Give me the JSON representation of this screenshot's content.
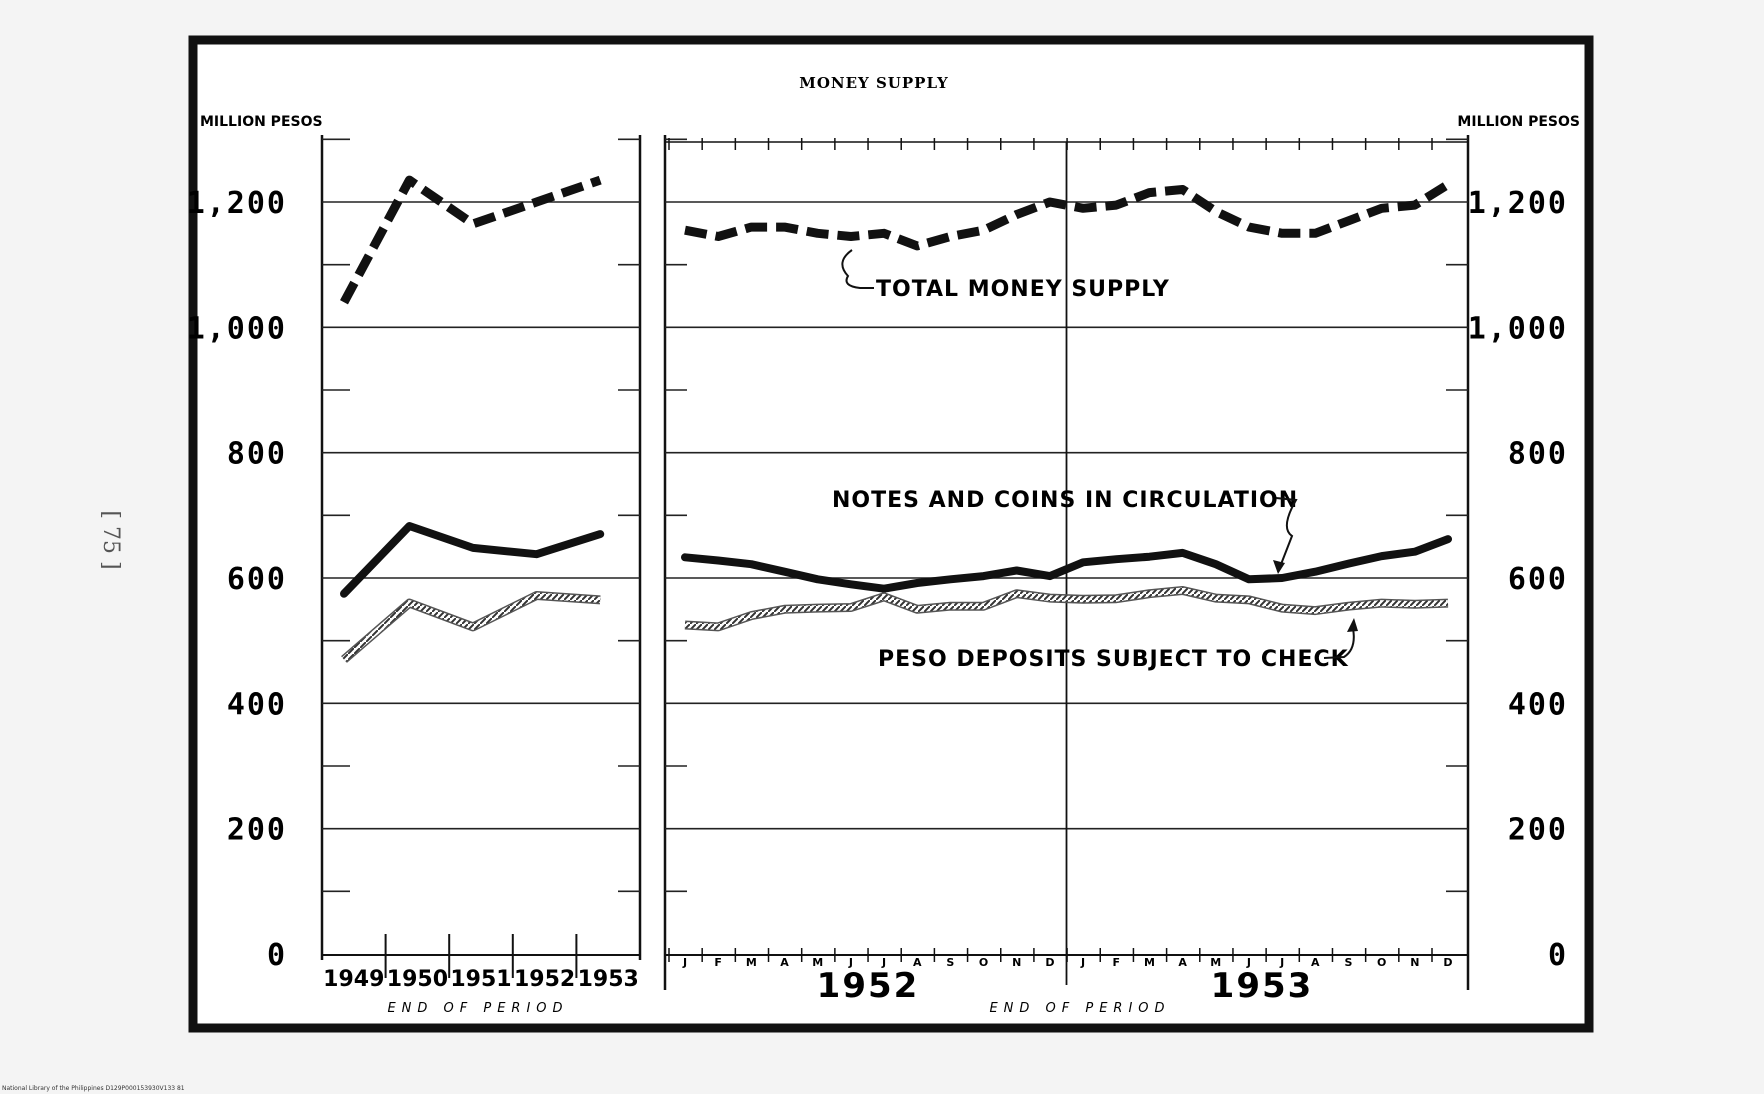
{
  "page": {
    "page_number": "[ 75 ]",
    "footer": "National Library of the Philippines     D129P000153930V133 81"
  },
  "chart_data": {
    "type": "line",
    "title": "MONEY SUPPLY",
    "ylabel_left": "MILLION PESOS",
    "ylabel_right": "MILLION PESOS",
    "xlabel": "END OF PERIOD",
    "ylim": [
      0,
      1300
    ],
    "yticks": [
      0,
      200,
      400,
      600,
      800,
      1000,
      1200
    ],
    "ytick_labels": [
      "0",
      "200",
      "400",
      "600",
      "800",
      "1,000",
      "1,200"
    ],
    "grid": true,
    "annual": {
      "categories": [
        "1949",
        "1950",
        "1951",
        "1952",
        "1953"
      ],
      "series": [
        {
          "name": "TOTAL MONEY SUPPLY",
          "style": "dashed",
          "values": [
            1040,
            1235,
            1165,
            1200,
            1235
          ]
        },
        {
          "name": "NOTES AND COINS IN CIRCULATION",
          "style": "solid",
          "values": [
            575,
            683,
            648,
            638,
            670
          ]
        },
        {
          "name": "PESO DEPOSITS SUBJECT TO CHECK",
          "style": "hatched",
          "values": [
            470,
            560,
            522,
            572,
            565
          ]
        }
      ]
    },
    "monthly": {
      "years": [
        "1952",
        "1953"
      ],
      "months": [
        "J",
        "F",
        "M",
        "A",
        "M",
        "J",
        "J",
        "A",
        "S",
        "O",
        "N",
        "D"
      ],
      "series": [
        {
          "name": "TOTAL MONEY SUPPLY",
          "style": "dashed",
          "values": [
            1155,
            1145,
            1160,
            1160,
            1150,
            1145,
            1150,
            1130,
            1145,
            1155,
            1180,
            1200,
            1190,
            1195,
            1215,
            1220,
            1185,
            1160,
            1150,
            1150,
            1170,
            1190,
            1195,
            1228
          ]
        },
        {
          "name": "NOTES AND COINS IN CIRCULATION",
          "style": "solid",
          "values": [
            633,
            628,
            622,
            610,
            598,
            590,
            583,
            592,
            598,
            603,
            612,
            603,
            625,
            630,
            634,
            640,
            622,
            598,
            600,
            610,
            623,
            635,
            642,
            662
          ]
        },
        {
          "name": "PESO DEPOSITS SUBJECT TO CHECK",
          "style": "hatched",
          "values": [
            525,
            522,
            540,
            550,
            552,
            553,
            570,
            550,
            555,
            555,
            575,
            568,
            566,
            567,
            575,
            580,
            568,
            565,
            552,
            548,
            555,
            560,
            558,
            560
          ]
        }
      ]
    },
    "annotations": [
      {
        "text": "TOTAL MONEY SUPPLY",
        "series": "TOTAL MONEY SUPPLY"
      },
      {
        "text": "NOTES AND COINS IN CIRCULATION",
        "series": "NOTES AND COINS IN CIRCULATION"
      },
      {
        "text": "PESO DEPOSITS SUBJECT TO CHECK",
        "series": "PESO DEPOSITS SUBJECT TO CHECK"
      }
    ]
  }
}
